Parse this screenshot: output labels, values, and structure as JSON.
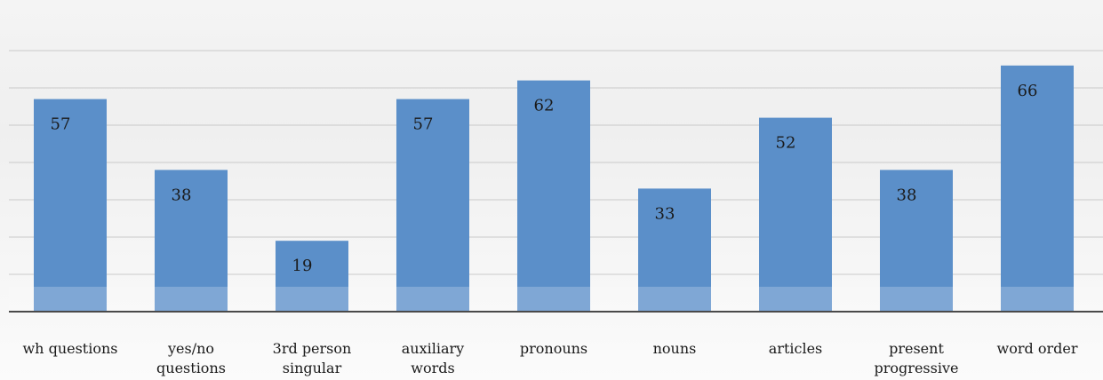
{
  "chart_data": {
    "type": "bar",
    "title": "",
    "xlabel": "",
    "ylabel": "",
    "categories": [
      "wh questions",
      "yes/no questions",
      "3rd person singular",
      "auxiliary words",
      "pronouns",
      "nouns",
      "articles",
      "present progressive",
      "word order"
    ],
    "category_lines": [
      [
        "wh questions"
      ],
      [
        "yes/no",
        "questions"
      ],
      [
        "3rd person",
        "singular"
      ],
      [
        "auxiliary",
        "words"
      ],
      [
        "pronouns"
      ],
      [
        "nouns"
      ],
      [
        "articles"
      ],
      [
        "present",
        "progressive"
      ],
      [
        "word order"
      ]
    ],
    "values": [
      57,
      38,
      19,
      57,
      62,
      33,
      52,
      38,
      66
    ],
    "ylim": [
      0,
      70
    ],
    "grid": true,
    "gridline_step": 10,
    "legend": "none",
    "bar_color": "#5b8fc9",
    "data_labels": true
  }
}
